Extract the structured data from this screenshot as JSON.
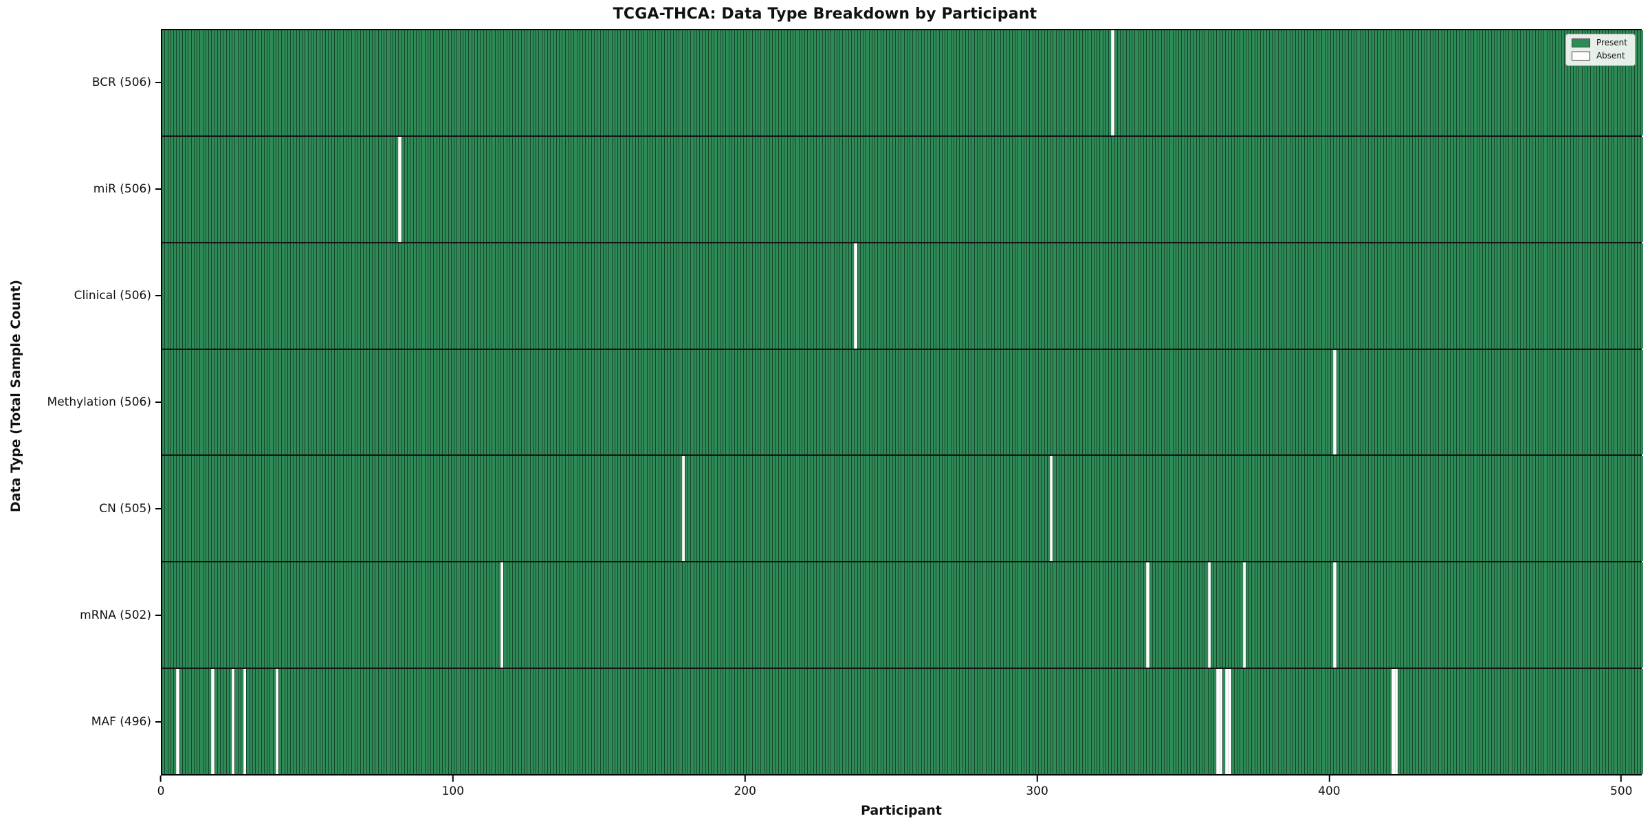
{
  "title": "TCGA-THCA: Data Type Breakdown by Participant",
  "legend": {
    "present_label": "Present",
    "absent_label": "Absent"
  },
  "colors": {
    "present": "#2e8b57",
    "absent": "#ffffff",
    "bar_edge": "rgba(0,0,0,0.5)",
    "absent_edge": "#d9d9d9"
  },
  "chart_data": {
    "type": "heatmap",
    "title": "TCGA-THCA: Data Type Breakdown by Participant",
    "xlabel": "Participant",
    "ylabel": "Data Type (Total Sample Count)",
    "n_participants": 507,
    "x_range": [
      0,
      507
    ],
    "x_ticks": [
      0,
      100,
      200,
      300,
      400,
      500
    ],
    "grid": false,
    "legend_position": "upper right",
    "legend_entries": [
      {
        "label": "Present",
        "color": "#2e8b57"
      },
      {
        "label": "Absent",
        "color": "#ffffff"
      }
    ],
    "rows": [
      {
        "label": "BCR (506)",
        "data_type": "BCR",
        "present_count": 506,
        "absent_participants": [
          325
        ]
      },
      {
        "label": "miR (506)",
        "data_type": "miR",
        "present_count": 506,
        "absent_participants": [
          81
        ]
      },
      {
        "label": "Clinical (506)",
        "data_type": "Clinical",
        "present_count": 506,
        "absent_participants": [
          237
        ]
      },
      {
        "label": "Methylation (506)",
        "data_type": "Methylation",
        "present_count": 506,
        "absent_participants": [
          401
        ]
      },
      {
        "label": "CN (505)",
        "data_type": "CN",
        "present_count": 505,
        "absent_participants": [
          178,
          304
        ]
      },
      {
        "label": "mRNA (502)",
        "data_type": "mRNA",
        "present_count": 502,
        "absent_participants": [
          116,
          337,
          358,
          370,
          401
        ]
      },
      {
        "label": "MAF (496)",
        "data_type": "MAF",
        "present_count": 496,
        "absent_participants": [
          5,
          17,
          24,
          28,
          39,
          361,
          362,
          364,
          365,
          421,
          422
        ]
      }
    ]
  }
}
